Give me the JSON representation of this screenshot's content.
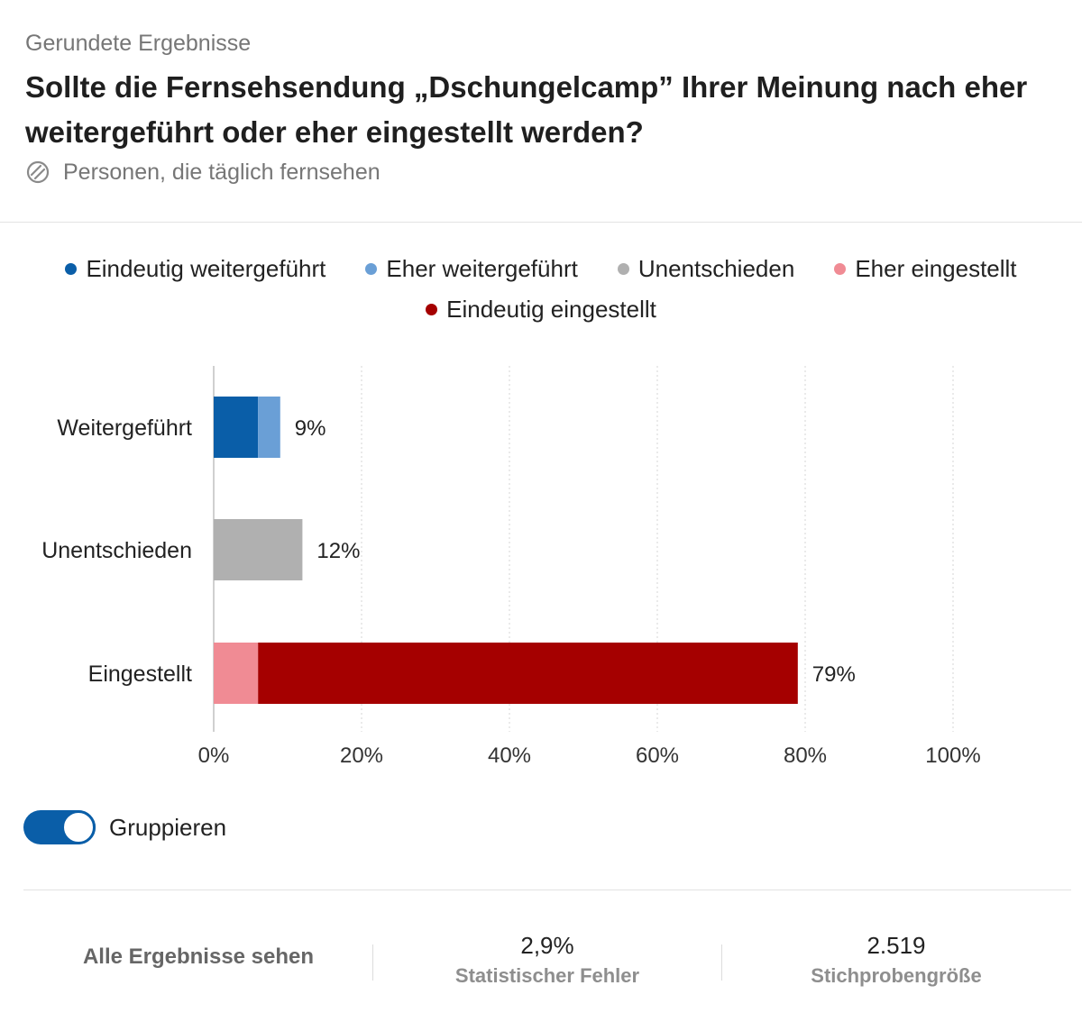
{
  "header": {
    "subtitle": "Gerundete Ergebnisse",
    "title": "Sollte die Fernsehsendung „Dschungelcamp” Ihrer Meinung nach eher weitergeführt oder eher eingestellt werden?",
    "filter_icon": "audience-filter-icon",
    "filter_label": "Personen, die täglich fernsehen"
  },
  "legend": {
    "row1": [
      {
        "label": "Eindeutig weitergeführt",
        "color": "#0a5ea8"
      },
      {
        "label": "Eher weitergeführt",
        "color": "#6a9fd6"
      },
      {
        "label": "Unentschieden",
        "color": "#b0b0b0"
      },
      {
        "label": "Eher eingestellt",
        "color": "#f08b94"
      }
    ],
    "row2": [
      {
        "label": "Eindeutig eingestellt",
        "color": "#a50000"
      }
    ]
  },
  "chart_data": {
    "type": "bar",
    "orientation": "horizontal",
    "stacked": true,
    "categories": [
      "Weitergeführt",
      "Unentschieden",
      "Eingestellt"
    ],
    "segments": [
      [
        {
          "series": "Eindeutig weitergeführt",
          "value": 6,
          "color": "#0a5ea8"
        },
        {
          "series": "Eher weitergeführt",
          "value": 3,
          "color": "#6a9fd6"
        }
      ],
      [
        {
          "series": "Unentschieden",
          "value": 12,
          "color": "#b0b0b0"
        }
      ],
      [
        {
          "series": "Eher eingestellt",
          "value": 6,
          "color": "#f08b94"
        },
        {
          "series": "Eindeutig eingestellt",
          "value": 73,
          "color": "#a50000"
        }
      ]
    ],
    "totals": [
      9,
      12,
      79
    ],
    "value_labels": [
      "9%",
      "12%",
      "79%"
    ],
    "xlim": [
      0,
      100
    ],
    "x_ticks": [
      0,
      20,
      40,
      60,
      80,
      100
    ],
    "x_tick_labels": [
      "0%",
      "20%",
      "40%",
      "60%",
      "80%",
      "100%"
    ],
    "grid": true,
    "legend_position": "top"
  },
  "controls": {
    "group_toggle_label": "Gruppieren",
    "group_toggle_on": true
  },
  "footer": {
    "all_results_label": "Alle Ergebnisse sehen",
    "stat_error_value": "2,9%",
    "stat_error_label": "Statistischer Fehler",
    "sample_size_value": "2.519",
    "sample_size_label": "Stichprobengröße"
  }
}
